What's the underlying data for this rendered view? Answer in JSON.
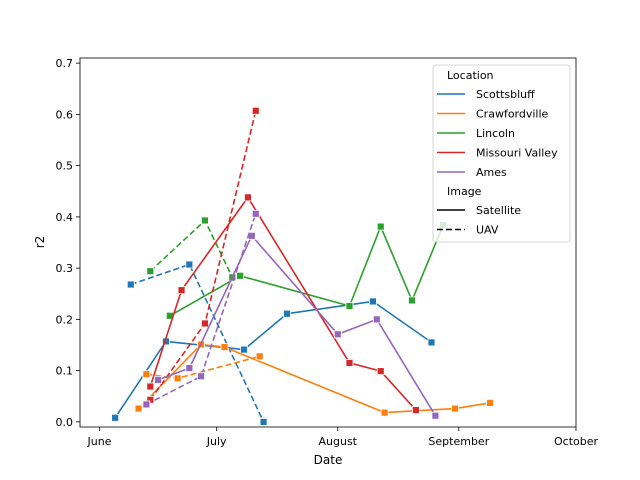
{
  "chart_data": {
    "type": "line",
    "xlabel": "Date",
    "ylabel": "r2",
    "x_ticks": [
      {
        "date": "2022-06-01",
        "label": "June"
      },
      {
        "date": "2022-07-01",
        "label": "July"
      },
      {
        "date": "2022-08-01",
        "label": "August"
      },
      {
        "date": "2022-09-01",
        "label": "September"
      },
      {
        "date": "2022-10-01",
        "label": "October"
      }
    ],
    "y_ticks": [
      "0.0",
      "0.1",
      "0.2",
      "0.3",
      "0.4",
      "0.5",
      "0.6",
      "0.7"
    ],
    "xlim": [
      "2022-05-27",
      "2022-10-01"
    ],
    "ylim": [
      -0.01,
      0.71
    ],
    "grid": false,
    "legend": {
      "placement": "top-right",
      "location_title": "Location",
      "image_title": "Image",
      "locations": [
        {
          "name": "Scottsbluff",
          "color": "#1f77b4"
        },
        {
          "name": "Crawfordville",
          "color": "#ff7f0e"
        },
        {
          "name": "Lincoln",
          "color": "#2ca02c"
        },
        {
          "name": "Missouri Valley",
          "color": "#d62728"
        },
        {
          "name": "Ames",
          "color": "#9467bd"
        }
      ],
      "images": [
        {
          "name": "Satellite",
          "style": "solid"
        },
        {
          "name": "UAV",
          "style": "dashed"
        }
      ]
    },
    "series": [
      {
        "location": "Scottsbluff",
        "image": "Satellite",
        "x": [
          "2022-06-05",
          "2022-06-18",
          "2022-07-03",
          "2022-07-08",
          "2022-07-19",
          "2022-08-10",
          "2022-08-25"
        ],
        "y": [
          0.008,
          0.157,
          0.145,
          0.141,
          0.211,
          0.235,
          0.155
        ]
      },
      {
        "location": "Scottsbluff",
        "image": "UAV",
        "x": [
          "2022-06-09",
          "2022-06-24",
          "2022-07-13"
        ],
        "y": [
          0.268,
          0.307,
          0.0
        ]
      },
      {
        "location": "Crawfordville",
        "image": "Satellite",
        "x": [
          "2022-06-11",
          "2022-06-27",
          "2022-07-03",
          "2022-08-13",
          "2022-08-31",
          "2022-09-09"
        ],
        "y": [
          0.026,
          0.151,
          0.146,
          0.018,
          0.026,
          0.037
        ]
      },
      {
        "location": "Crawfordville",
        "image": "UAV",
        "x": [
          "2022-06-13",
          "2022-06-21",
          "2022-07-12"
        ],
        "y": [
          0.093,
          0.085,
          0.128
        ]
      },
      {
        "location": "Lincoln",
        "image": "Satellite",
        "x": [
          "2022-06-19",
          "2022-07-07",
          "2022-08-04",
          "2022-08-12",
          "2022-08-20",
          "2022-08-28"
        ],
        "y": [
          0.207,
          0.285,
          0.226,
          0.381,
          0.237,
          0.384
        ]
      },
      {
        "location": "Lincoln",
        "image": "UAV",
        "x": [
          "2022-06-14",
          "2022-06-28",
          "2022-07-05"
        ],
        "y": [
          0.294,
          0.393,
          0.282
        ]
      },
      {
        "location": "Missouri Valley",
        "image": "Satellite",
        "x": [
          "2022-06-14",
          "2022-06-22",
          "2022-07-09",
          "2022-08-04",
          "2022-08-12",
          "2022-08-21"
        ],
        "y": [
          0.069,
          0.257,
          0.438,
          0.115,
          0.099,
          0.023
        ]
      },
      {
        "location": "Missouri Valley",
        "image": "UAV",
        "x": [
          "2022-06-14",
          "2022-06-28",
          "2022-07-11"
        ],
        "y": [
          0.043,
          0.192,
          0.607
        ]
      },
      {
        "location": "Ames",
        "image": "Satellite",
        "x": [
          "2022-06-16",
          "2022-06-24",
          "2022-07-10",
          "2022-08-01",
          "2022-08-11",
          "2022-08-26"
        ],
        "y": [
          0.082,
          0.105,
          0.363,
          0.171,
          0.2,
          0.012
        ]
      },
      {
        "location": "Ames",
        "image": "UAV",
        "x": [
          "2022-06-13",
          "2022-06-27",
          "2022-07-11"
        ],
        "y": [
          0.034,
          0.089,
          0.406
        ]
      }
    ]
  }
}
